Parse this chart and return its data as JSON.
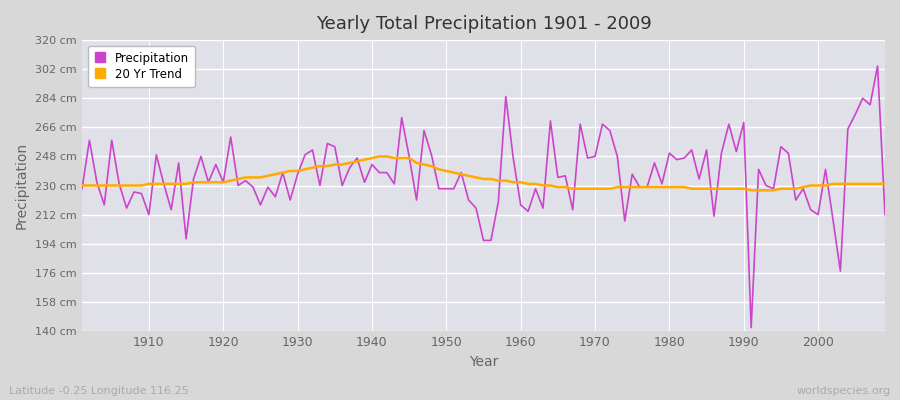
{
  "title": "Yearly Total Precipitation 1901 - 2009",
  "xlabel": "Year",
  "ylabel": "Precipitation",
  "subtitle": "Latitude -0.25 Longitude 116.25",
  "watermark": "worldspecies.org",
  "bg_color": "#d8d8d8",
  "plot_bg_color": "#e0e0e8",
  "grid_color": "#ffffff",
  "precip_color": "#cc44cc",
  "trend_color": "#ffaa00",
  "ylim": [
    140,
    320
  ],
  "yticks": [
    140,
    158,
    176,
    194,
    212,
    230,
    248,
    266,
    284,
    302,
    320
  ],
  "xlim_min": 1901,
  "xlim_max": 2009,
  "years": [
    1901,
    1902,
    1903,
    1904,
    1905,
    1906,
    1907,
    1908,
    1909,
    1910,
    1911,
    1912,
    1913,
    1914,
    1915,
    1916,
    1917,
    1918,
    1919,
    1920,
    1921,
    1922,
    1923,
    1924,
    1925,
    1926,
    1927,
    1928,
    1929,
    1930,
    1931,
    1932,
    1933,
    1934,
    1935,
    1936,
    1937,
    1938,
    1939,
    1940,
    1941,
    1942,
    1943,
    1944,
    1945,
    1946,
    1947,
    1948,
    1949,
    1950,
    1951,
    1952,
    1953,
    1954,
    1955,
    1956,
    1957,
    1958,
    1959,
    1960,
    1961,
    1962,
    1963,
    1964,
    1965,
    1966,
    1967,
    1968,
    1969,
    1970,
    1971,
    1972,
    1973,
    1974,
    1975,
    1976,
    1977,
    1978,
    1979,
    1980,
    1981,
    1982,
    1983,
    1984,
    1985,
    1986,
    1987,
    1988,
    1989,
    1990,
    1991,
    1992,
    1993,
    1994,
    1995,
    1996,
    1997,
    1998,
    1999,
    2000,
    2001,
    2002,
    2003,
    2004,
    2005,
    2006,
    2007,
    2008,
    2009
  ],
  "precip": [
    228,
    258,
    232,
    218,
    258,
    231,
    216,
    226,
    225,
    212,
    249,
    231,
    215,
    244,
    197,
    234,
    248,
    232,
    243,
    232,
    260,
    230,
    233,
    229,
    218,
    229,
    223,
    238,
    221,
    237,
    249,
    252,
    230,
    256,
    254,
    230,
    241,
    247,
    232,
    243,
    238,
    238,
    231,
    272,
    248,
    221,
    264,
    249,
    228,
    228,
    228,
    238,
    221,
    216,
    196,
    196,
    220,
    285,
    247,
    218,
    214,
    228,
    216,
    270,
    235,
    236,
    215,
    268,
    247,
    248,
    268,
    264,
    248,
    208,
    237,
    229,
    229,
    244,
    231,
    250,
    246,
    247,
    252,
    234,
    252,
    211,
    250,
    268,
    251,
    269,
    142,
    240,
    230,
    228,
    254,
    250,
    221,
    228,
    215,
    212,
    240,
    209,
    177,
    265,
    274,
    284,
    280,
    304,
    212
  ],
  "trend": [
    230,
    230,
    230,
    230,
    230,
    230,
    230,
    230,
    230,
    231,
    231,
    231,
    231,
    231,
    231,
    232,
    232,
    232,
    232,
    232,
    233,
    234,
    235,
    235,
    235,
    236,
    237,
    238,
    239,
    239,
    240,
    241,
    242,
    242,
    243,
    243,
    244,
    245,
    246,
    247,
    248,
    248,
    247,
    247,
    247,
    244,
    243,
    242,
    240,
    239,
    238,
    237,
    236,
    235,
    234,
    234,
    233,
    233,
    232,
    232,
    231,
    231,
    230,
    230,
    229,
    229,
    228,
    228,
    228,
    228,
    228,
    228,
    229,
    229,
    229,
    229,
    229,
    229,
    229,
    229,
    229,
    229,
    228,
    228,
    228,
    228,
    228,
    228,
    228,
    228,
    227,
    227,
    227,
    227,
    228,
    228,
    228,
    229,
    230,
    230,
    230,
    231,
    231,
    231,
    231,
    231,
    231,
    231,
    231
  ]
}
